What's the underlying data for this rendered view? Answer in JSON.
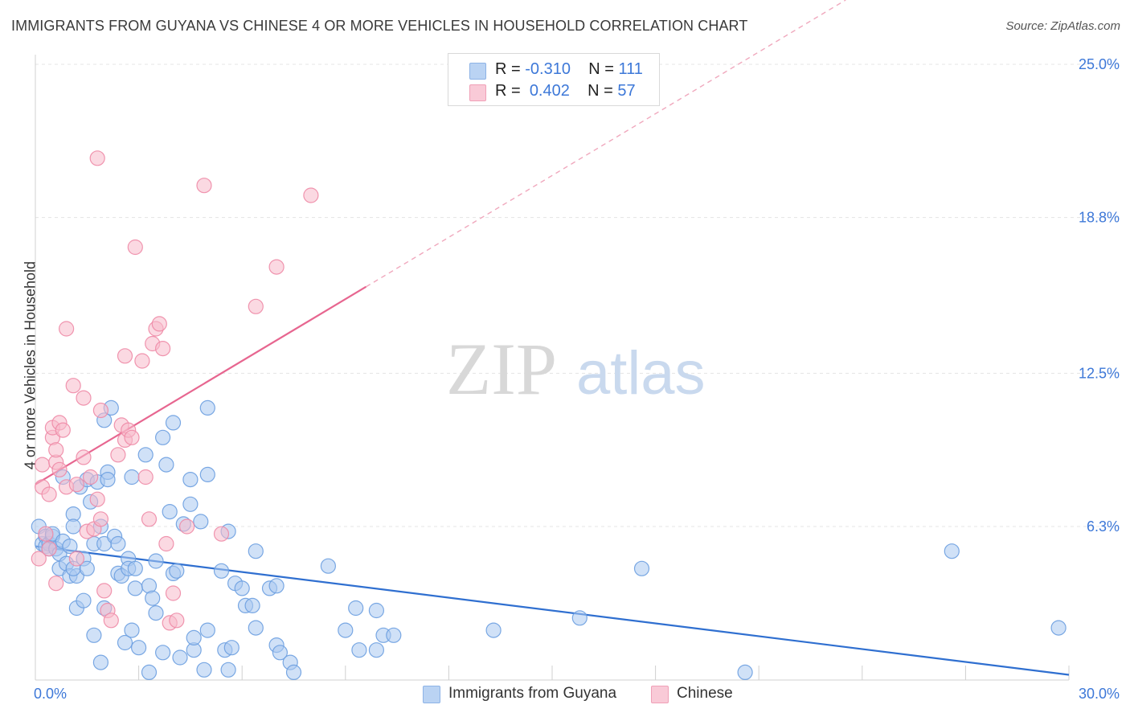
{
  "title": "IMMIGRANTS FROM GUYANA VS CHINESE 4 OR MORE VEHICLES IN HOUSEHOLD CORRELATION CHART",
  "source": "Source: ZipAtlas.com",
  "watermark": {
    "zip": "ZIP",
    "atlas": "atlas"
  },
  "legend": {
    "rows": [
      {
        "r_label": "R =",
        "r_value": "-0.310",
        "n_label": "N =",
        "n_value": "111",
        "color": "#a9c8f0"
      },
      {
        "r_label": "R =",
        "r_value": "0.402",
        "n_label": "N =",
        "n_value": "57",
        "color": "#f7b9cb"
      }
    ]
  },
  "bottom_legend": [
    {
      "label": "Immigrants from Guyana",
      "color": "#a9c8f0"
    },
    {
      "label": "Chinese",
      "color": "#f7b9cb"
    }
  ],
  "chart_data": {
    "type": "scatter",
    "xlabel": "",
    "ylabel": "4 or more Vehicles in Household",
    "xlim": [
      0,
      30
    ],
    "ylim": [
      0,
      26
    ],
    "x_tick_labels": [
      "0.0%",
      "30.0%"
    ],
    "y_ticks": [
      6.3,
      12.5,
      18.8,
      25.0
    ],
    "y_tick_labels": [
      "6.3%",
      "12.5%",
      "18.8%",
      "25.0%"
    ],
    "grid": true,
    "legend_position": "top-center",
    "series": [
      {
        "name": "Immigrants from Guyana",
        "color": "#6b9ee0",
        "fill": "#a9c8f0",
        "trend": {
          "x": [
            0,
            30
          ],
          "y": [
            5.5,
            0.3
          ],
          "solid_until_x": 30
        },
        "points": [
          [
            0.1,
            6.3
          ],
          [
            0.2,
            5.6
          ],
          [
            0.3,
            5.9
          ],
          [
            0.3,
            5.5
          ],
          [
            0.4,
            5.6
          ],
          [
            0.4,
            5.4
          ],
          [
            0.5,
            5.9
          ],
          [
            0.6,
            5.4
          ],
          [
            0.5,
            6.0
          ],
          [
            0.7,
            5.2
          ],
          [
            0.7,
            4.6
          ],
          [
            0.8,
            5.7
          ],
          [
            0.8,
            8.3
          ],
          [
            0.9,
            4.8
          ],
          [
            1.0,
            5.5
          ],
          [
            1.0,
            4.3
          ],
          [
            1.1,
            6.8
          ],
          [
            1.2,
            4.3
          ],
          [
            1.2,
            3.0
          ],
          [
            1.3,
            7.9
          ],
          [
            1.1,
            6.3
          ],
          [
            1.1,
            4.6
          ],
          [
            1.4,
            3.3
          ],
          [
            1.4,
            5.0
          ],
          [
            1.5,
            4.6
          ],
          [
            1.5,
            8.2
          ],
          [
            1.6,
            7.3
          ],
          [
            1.7,
            5.6
          ],
          [
            1.7,
            1.9
          ],
          [
            1.8,
            8.1
          ],
          [
            1.9,
            6.3
          ],
          [
            1.9,
            0.8
          ],
          [
            2.0,
            5.6
          ],
          [
            2.0,
            10.6
          ],
          [
            2.1,
            8.5
          ],
          [
            2.0,
            3.0
          ],
          [
            2.2,
            11.1
          ],
          [
            2.1,
            8.2
          ],
          [
            2.3,
            5.9
          ],
          [
            2.4,
            5.6
          ],
          [
            2.4,
            4.4
          ],
          [
            2.5,
            4.3
          ],
          [
            2.6,
            1.6
          ],
          [
            2.7,
            5.0
          ],
          [
            2.7,
            4.6
          ],
          [
            2.8,
            2.1
          ],
          [
            2.8,
            8.3
          ],
          [
            2.9,
            4.6
          ],
          [
            2.9,
            3.8
          ],
          [
            3.0,
            1.4
          ],
          [
            3.2,
            9.2
          ],
          [
            3.3,
            3.9
          ],
          [
            3.3,
            0.4
          ],
          [
            3.4,
            3.4
          ],
          [
            3.5,
            2.8
          ],
          [
            3.5,
            4.9
          ],
          [
            3.7,
            1.2
          ],
          [
            3.7,
            9.9
          ],
          [
            3.8,
            8.8
          ],
          [
            3.9,
            6.9
          ],
          [
            4.0,
            10.5
          ],
          [
            4.0,
            4.4
          ],
          [
            4.1,
            4.5
          ],
          [
            4.2,
            1.0
          ],
          [
            4.3,
            6.4
          ],
          [
            4.5,
            8.2
          ],
          [
            4.5,
            7.2
          ],
          [
            4.6,
            1.3
          ],
          [
            4.6,
            1.8
          ],
          [
            4.8,
            6.5
          ],
          [
            4.9,
            0.5
          ],
          [
            5.0,
            11.1
          ],
          [
            5.0,
            8.4
          ],
          [
            5.0,
            2.1
          ],
          [
            5.4,
            4.5
          ],
          [
            5.5,
            1.3
          ],
          [
            5.6,
            6.1
          ],
          [
            5.6,
            0.5
          ],
          [
            5.7,
            1.4
          ],
          [
            5.8,
            4.0
          ],
          [
            6.0,
            3.8
          ],
          [
            6.1,
            3.1
          ],
          [
            6.3,
            3.1
          ],
          [
            6.4,
            5.3
          ],
          [
            6.4,
            2.2
          ],
          [
            6.8,
            3.8
          ],
          [
            7.0,
            3.9
          ],
          [
            7.0,
            1.5
          ],
          [
            7.1,
            1.2
          ],
          [
            7.4,
            0.8
          ],
          [
            7.5,
            0.4
          ],
          [
            8.5,
            4.7
          ],
          [
            9.0,
            2.1
          ],
          [
            9.3,
            3.0
          ],
          [
            9.4,
            1.3
          ],
          [
            9.9,
            2.9
          ],
          [
            9.9,
            1.3
          ],
          [
            10.1,
            1.9
          ],
          [
            10.4,
            1.9
          ],
          [
            13.3,
            2.1
          ],
          [
            15.8,
            2.6
          ],
          [
            17.6,
            4.6
          ],
          [
            20.6,
            0.4
          ],
          [
            26.6,
            5.3
          ],
          [
            29.7,
            2.2
          ]
        ]
      },
      {
        "name": "Chinese",
        "color": "#ee8aa6",
        "fill": "#f7b9cb",
        "trend": {
          "x": [
            0,
            30
          ],
          "y": [
            8.0,
            33.0
          ],
          "solid_until_x": 9.6
        },
        "points": [
          [
            0.1,
            5.0
          ],
          [
            0.2,
            7.9
          ],
          [
            0.2,
            8.8
          ],
          [
            0.3,
            6.0
          ],
          [
            0.4,
            7.6
          ],
          [
            0.4,
            5.4
          ],
          [
            0.5,
            9.9
          ],
          [
            0.5,
            10.3
          ],
          [
            0.6,
            8.9
          ],
          [
            0.6,
            9.4
          ],
          [
            0.6,
            4.0
          ],
          [
            0.7,
            8.6
          ],
          [
            0.7,
            10.5
          ],
          [
            0.8,
            10.2
          ],
          [
            0.9,
            14.3
          ],
          [
            0.9,
            7.9
          ],
          [
            1.1,
            12.0
          ],
          [
            1.2,
            5.0
          ],
          [
            1.2,
            8.0
          ],
          [
            1.4,
            11.5
          ],
          [
            1.4,
            9.1
          ],
          [
            1.5,
            6.1
          ],
          [
            1.6,
            8.3
          ],
          [
            1.7,
            6.2
          ],
          [
            1.8,
            7.4
          ],
          [
            1.8,
            21.2
          ],
          [
            1.9,
            11.0
          ],
          [
            1.9,
            6.6
          ],
          [
            2.0,
            3.7
          ],
          [
            2.1,
            2.9
          ],
          [
            2.2,
            2.5
          ],
          [
            2.4,
            9.2
          ],
          [
            2.5,
            10.4
          ],
          [
            2.6,
            9.8
          ],
          [
            2.6,
            13.2
          ],
          [
            2.7,
            10.2
          ],
          [
            2.8,
            9.9
          ],
          [
            2.9,
            17.6
          ],
          [
            3.1,
            13.0
          ],
          [
            3.2,
            8.3
          ],
          [
            3.3,
            6.6
          ],
          [
            3.4,
            13.7
          ],
          [
            3.5,
            14.3
          ],
          [
            3.6,
            14.5
          ],
          [
            3.7,
            13.5
          ],
          [
            3.8,
            5.6
          ],
          [
            3.9,
            2.4
          ],
          [
            4.0,
            3.6
          ],
          [
            4.1,
            2.5
          ],
          [
            4.4,
            6.3
          ],
          [
            4.9,
            20.1
          ],
          [
            5.4,
            6.0
          ],
          [
            6.4,
            15.2
          ],
          [
            7.0,
            16.8
          ],
          [
            8.0,
            19.7
          ]
        ]
      }
    ]
  }
}
